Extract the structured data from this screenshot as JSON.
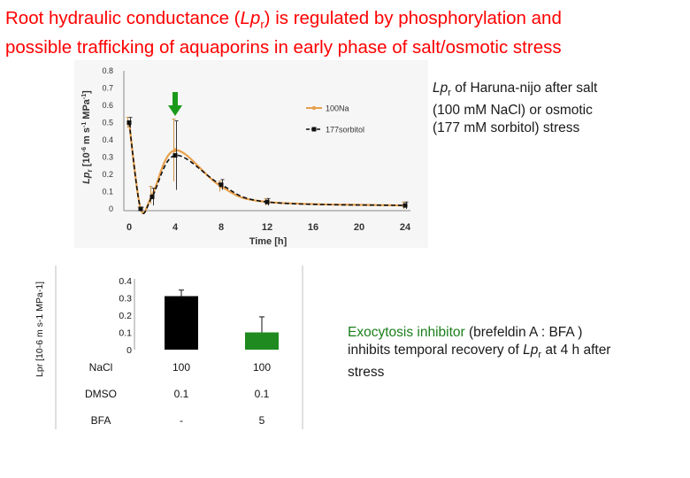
{
  "title": {
    "line1_a": "Root hydraulic conductance (",
    "line1_lp": "Lp",
    "line1_sub": "r",
    "line1_b": ") is regulated by phosphorylation and",
    "line2": "possible trafficking of aquaporins in early phase of salt/osmotic stress"
  },
  "note1": {
    "lp": "Lp",
    "sub": "r",
    "text1": " of Haruna-nijo after salt",
    "text2": "(100 mM NaCl)  or osmotic",
    "text3": "(177 mM sorbitol) stress"
  },
  "note2": {
    "green": "Exocytosis inhibitor",
    "text1": " (brefeldin A : BFA )",
    "text2a": "inhibits temporal recovery of ",
    "lp": "Lp",
    "sub": "r",
    "text2b": " at 4 h after",
    "text3": "stress"
  },
  "chart_data": [
    {
      "type": "line",
      "xlabel": "Time [h]",
      "ylabel_main": "Lp",
      "ylabel_sub": "r",
      "ylabel_units": " [10",
      "ylabel_units_exp1": "-6",
      "ylabel_units2": " m s",
      "ylabel_units_exp2": "-1",
      "ylabel_units3": " MPa",
      "ylabel_units_exp3": "-1",
      "ylabel_units4": "]",
      "xlim": [
        0,
        24
      ],
      "ylim": [
        0,
        0.8
      ],
      "xticks": [
        "0",
        "4",
        "8",
        "12",
        "16",
        "20",
        "24"
      ],
      "yticks": [
        "0",
        "0.1",
        "0.2",
        "0.3",
        "0.4",
        "0.5",
        "0.6",
        "0.7",
        "0.8"
      ],
      "arrow_at_x": 4,
      "arrow_color": "#1a9a1a",
      "legend_position": "right",
      "series": [
        {
          "name": "100Na",
          "color": "#e8a04c",
          "x": [
            0,
            1,
            2,
            4,
            8,
            12,
            24
          ],
          "y": [
            0.5,
            0.0,
            0.08,
            0.34,
            0.13,
            0.04,
            0.02
          ],
          "err": [
            0.03,
            0.01,
            0.05,
            0.18,
            0.03,
            0.02,
            0.02
          ]
        },
        {
          "name": "177sorbitol",
          "color": "#111111",
          "x": [
            0,
            1,
            2,
            4,
            8,
            12,
            24
          ],
          "y": [
            0.5,
            0.0,
            0.07,
            0.31,
            0.14,
            0.04,
            0.02
          ],
          "err": [
            0.03,
            0.01,
            0.05,
            0.2,
            0.03,
            0.02,
            0.02
          ]
        }
      ]
    },
    {
      "type": "bar",
      "ylabel": "Lpr  [10-6 m s-1 MPa-1]",
      "ylim": [
        0,
        0.4
      ],
      "yticks": [
        "0",
        "0.1",
        "0.2",
        "0.3",
        "0.4"
      ],
      "values": [
        0.31,
        0.1
      ],
      "errors": [
        0.035,
        0.09
      ],
      "colors": [
        "#000000",
        "#1f8a1f"
      ],
      "table": {
        "rows": [
          {
            "label": "NaCl",
            "cells": [
              "100",
              "100"
            ]
          },
          {
            "label": "DMSO",
            "cells": [
              "0.1",
              "0.1"
            ]
          },
          {
            "label": "BFA",
            "cells": [
              "-",
              "5"
            ]
          }
        ]
      }
    }
  ]
}
